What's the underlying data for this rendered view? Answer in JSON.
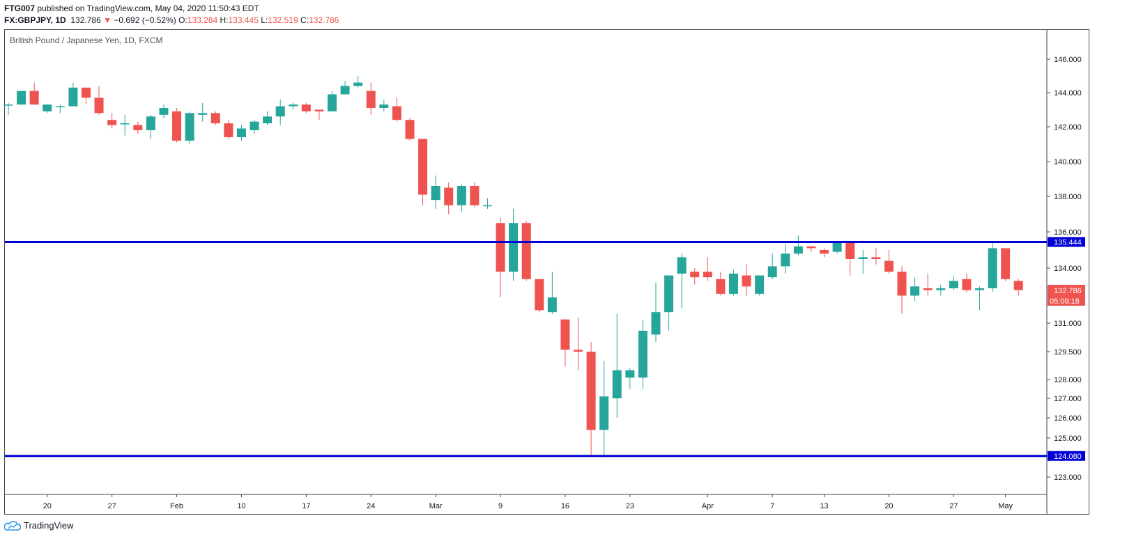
{
  "header": {
    "author": "FTG007",
    "published": " published on TradingView.com, May 04, 2020 11:50:43 EDT",
    "symbol": "FX:GBPJPY, 1D",
    "last": "132.786",
    "change_arrow": "▼",
    "change": "−0.692 (−0.52%)",
    "o_label": "O:",
    "o": "133.284",
    "h_label": "H:",
    "h": "133.445",
    "l_label": "L:",
    "l": "132.519",
    "c_label": "C:",
    "c": "132.786"
  },
  "footer": {
    "brand": "TradingView"
  },
  "colors": {
    "up": "#26a69a",
    "down": "#ef5350",
    "level": "#0000d6",
    "text": "#131722"
  },
  "chart_data": {
    "type": "candlestick",
    "title": "British Pound / Japanese Yen, 1D, FXCM",
    "y_ticks": [
      "146.000",
      "144.000",
      "142.000",
      "140.000",
      "138.000",
      "136.000",
      "134.000",
      "131.000",
      "129.500",
      "128.000",
      "127.000",
      "126.000",
      "125.000",
      "123.000"
    ],
    "x_ticks": [
      "20",
      "27",
      "Feb",
      "10",
      "17",
      "24",
      "Mar",
      "9",
      "16",
      "23",
      "Apr",
      "7",
      "13",
      "20",
      "27",
      "May"
    ],
    "levels": [
      {
        "value": 135.444,
        "label": "135.444"
      },
      {
        "value": 124.08,
        "label": "124.080"
      }
    ],
    "last_price": {
      "value": 132.786,
      "label": "132.786",
      "countdown": "05:09:18"
    },
    "candles": [
      [
        143.3,
        143.3,
        142.7,
        143.4
      ],
      [
        143.3,
        144.1,
        143.3,
        144.1
      ],
      [
        144.1,
        143.3,
        143.3,
        144.6
      ],
      [
        142.9,
        143.3,
        142.8,
        143.3
      ],
      [
        143.2,
        143.2,
        142.8,
        143.3
      ],
      [
        143.2,
        144.3,
        143.2,
        144.6
      ],
      [
        144.3,
        143.7,
        143.3,
        144.3
      ],
      [
        143.7,
        142.8,
        142.7,
        144.4
      ],
      [
        142.4,
        142.1,
        141.9,
        142.8
      ],
      [
        142.2,
        142.2,
        141.5,
        142.7
      ],
      [
        142.1,
        141.8,
        141.6,
        142.3
      ],
      [
        141.8,
        142.6,
        141.3,
        142.7
      ],
      [
        142.7,
        143.1,
        142.5,
        143.3
      ],
      [
        142.9,
        141.2,
        141.1,
        143.1
      ],
      [
        141.2,
        142.8,
        141.0,
        142.9
      ],
      [
        142.7,
        142.8,
        142.3,
        143.4
      ],
      [
        142.8,
        142.2,
        142.1,
        142.9
      ],
      [
        142.2,
        141.4,
        141.3,
        142.4
      ],
      [
        141.4,
        141.9,
        141.2,
        142.1
      ],
      [
        141.8,
        142.3,
        141.6,
        142.4
      ],
      [
        142.2,
        142.6,
        142.1,
        142.9
      ],
      [
        142.6,
        143.2,
        142.1,
        143.6
      ],
      [
        143.2,
        143.3,
        143.0,
        143.4
      ],
      [
        143.3,
        142.9,
        142.8,
        143.4
      ],
      [
        143.0,
        142.9,
        142.4,
        143.0
      ],
      [
        142.9,
        143.9,
        142.9,
        144.1
      ],
      [
        143.9,
        144.4,
        143.9,
        144.7
      ],
      [
        144.4,
        144.6,
        144.3,
        145.0
      ],
      [
        144.1,
        143.1,
        142.7,
        144.6
      ],
      [
        143.1,
        143.3,
        142.9,
        143.6
      ],
      [
        143.2,
        142.4,
        142.3,
        143.7
      ],
      [
        142.4,
        141.3,
        141.2,
        142.5
      ],
      [
        141.3,
        138.1,
        137.5,
        141.3
      ],
      [
        137.8,
        138.6,
        137.3,
        139.2
      ],
      [
        138.5,
        137.5,
        137.0,
        138.8
      ],
      [
        137.5,
        138.6,
        137.1,
        138.7
      ],
      [
        138.6,
        137.5,
        137.4,
        138.8
      ],
      [
        137.5,
        137.5,
        137.3,
        137.9
      ],
      [
        136.5,
        133.8,
        132.4,
        136.8
      ],
      [
        133.8,
        136.5,
        133.3,
        137.3
      ],
      [
        136.5,
        133.4,
        133.3,
        136.6
      ],
      [
        133.4,
        131.7,
        131.6,
        133.4
      ],
      [
        131.6,
        132.4,
        131.5,
        133.8
      ],
      [
        131.2,
        129.6,
        128.7,
        131.2
      ],
      [
        129.6,
        129.5,
        128.5,
        131.3
      ],
      [
        129.5,
        125.4,
        124.1,
        130.0
      ],
      [
        125.4,
        127.1,
        124.0,
        129.0
      ],
      [
        127.0,
        128.5,
        126.0,
        131.5
      ],
      [
        128.1,
        128.5,
        127.5,
        128.6
      ],
      [
        128.1,
        130.6,
        127.5,
        131.2
      ],
      [
        130.4,
        131.6,
        130.0,
        133.2
      ],
      [
        131.6,
        133.6,
        130.6,
        133.6
      ],
      [
        133.7,
        134.6,
        131.8,
        134.8
      ],
      [
        133.8,
        133.5,
        133.1,
        134.0
      ],
      [
        133.8,
        133.5,
        133.3,
        134.6
      ],
      [
        133.4,
        132.6,
        132.5,
        133.8
      ],
      [
        132.6,
        133.7,
        132.5,
        133.9
      ],
      [
        133.6,
        133.0,
        132.5,
        134.2
      ],
      [
        132.6,
        133.6,
        132.5,
        133.6
      ],
      [
        133.5,
        134.1,
        133.4,
        134.8
      ],
      [
        134.1,
        134.8,
        133.7,
        135.3
      ],
      [
        134.8,
        135.2,
        134.7,
        135.8
      ],
      [
        135.2,
        135.1,
        134.9,
        135.2
      ],
      [
        135.0,
        134.8,
        134.6,
        135.1
      ],
      [
        134.9,
        135.4,
        134.8,
        135.5
      ],
      [
        135.4,
        134.5,
        133.6,
        135.5
      ],
      [
        134.5,
        134.6,
        133.7,
        135.0
      ],
      [
        134.6,
        134.5,
        134.2,
        135.1
      ],
      [
        134.4,
        133.8,
        133.7,
        135.0
      ],
      [
        133.8,
        132.5,
        131.5,
        134.1
      ],
      [
        132.5,
        133.0,
        132.2,
        133.5
      ],
      [
        132.9,
        132.8,
        132.5,
        133.7
      ],
      [
        132.8,
        132.9,
        132.5,
        133.1
      ],
      [
        132.9,
        133.3,
        132.8,
        133.6
      ],
      [
        133.4,
        132.8,
        132.7,
        133.7
      ],
      [
        132.8,
        132.9,
        131.7,
        133.0
      ],
      [
        132.9,
        135.1,
        132.7,
        135.4
      ],
      [
        135.1,
        133.4,
        133.3,
        135.1
      ],
      [
        133.3,
        132.8,
        132.5,
        133.4
      ]
    ]
  }
}
